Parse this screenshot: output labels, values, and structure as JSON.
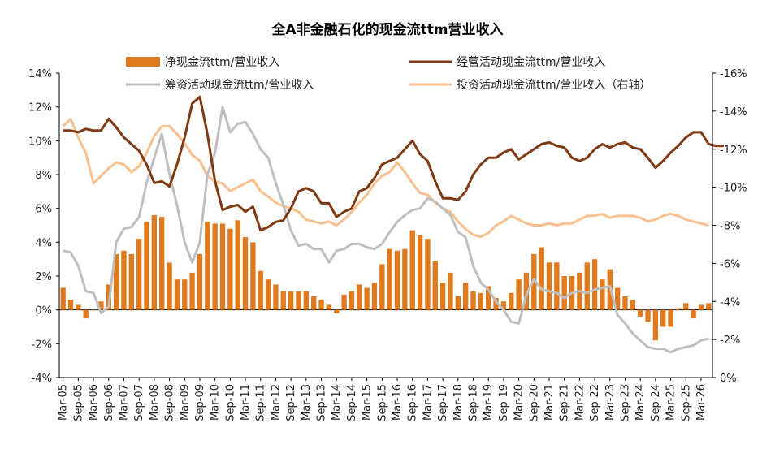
{
  "chart_data": {
    "type": "bar+line",
    "title": "全A非金融石化的现金流ttm营业收入",
    "legend": [
      {
        "label": "净现金流ttm/营业收入",
        "kind": "bar",
        "color": "#E07A1F"
      },
      {
        "label": "经营活动现金流ttm/营业收入",
        "kind": "line",
        "color": "#7F3A14"
      },
      {
        "label": "筹资活动现金流ttm/营业收入",
        "kind": "line",
        "color": "#BFBFBF"
      },
      {
        "label": "投资活动现金流ttm/营业收入（右轴）",
        "kind": "line",
        "color": "#F7C08E"
      }
    ],
    "left_axis": {
      "min": -4,
      "max": 14,
      "ticks": [
        "14%",
        "12%",
        "10%",
        "8%",
        "6%",
        "4%",
        "2%",
        "0%",
        "-2%",
        "-4%"
      ]
    },
    "right_axis": {
      "min": 0,
      "max": -16,
      "ticks": [
        "-16%",
        "-14%",
        "-12%",
        "-10%",
        "-8%",
        "-6%",
        "-4%",
        "-2%",
        "0%"
      ]
    },
    "x_tick_labels": [
      "Mar-05",
      "Sep-05",
      "Mar-06",
      "Sep-06",
      "Mar-07",
      "Sep-07",
      "Mar-08",
      "Sep-08",
      "Mar-09",
      "Sep-09",
      "Mar-10",
      "Sep-10",
      "Mar-11",
      "Sep-11",
      "Mar-12",
      "Sep-12",
      "Mar-13",
      "Sep-13",
      "Mar-14",
      "Sep-14",
      "Mar-15",
      "Sep-15",
      "Mar-16",
      "Sep-16",
      "Mar-17",
      "Sep-17",
      "Mar-18",
      "Sep-18",
      "Mar-19",
      "Sep-19",
      "Mar-20",
      "Sep-20",
      "Mar-21",
      "Sep-21",
      "Mar-22",
      "Sep-22",
      "Mar-23",
      "Sep-23",
      "Mar-24",
      "Sep-24",
      "Mar-25",
      "Sep-25",
      "Mar-26"
    ],
    "series": [
      {
        "name": "净现金流ttm/营业收入",
        "axis": "left",
        "values": [
          1.3,
          0.6,
          0.3,
          -0.5,
          0.0,
          0.5,
          1.5,
          3.3,
          3.5,
          3.3,
          4.2,
          5.2,
          5.6,
          5.5,
          2.8,
          1.8,
          1.8,
          2.2,
          3.3,
          5.2,
          5.1,
          5.1,
          4.8,
          5.3,
          4.3,
          4.0,
          2.3,
          1.8,
          1.5,
          1.1,
          1.1,
          1.1,
          1.1,
          0.8,
          0.6,
          0.3,
          -0.2,
          0.9,
          1.1,
          1.5,
          1.3,
          1.6,
          2.7,
          3.6,
          3.5,
          3.6,
          4.7,
          4.4,
          4.2,
          2.9,
          1.6,
          2.2,
          0.8,
          1.6,
          1.1,
          1.0,
          1.4,
          0.7,
          0.5,
          1.0,
          1.8,
          2.2,
          3.3,
          3.7,
          2.8,
          2.8,
          2.0,
          2.0,
          2.2,
          2.8,
          3.0,
          1.8,
          2.4,
          1.3,
          0.8,
          0.6,
          -0.4,
          -0.7,
          -1.8,
          -1.0,
          -1.0,
          0.1,
          0.4,
          -0.5,
          0.3,
          0.4
        ]
      },
      {
        "name": "经营活动现金流ttm/营业收入",
        "axis": "left",
        "values": [
          10.6,
          10.6,
          10.5,
          10.7,
          10.6,
          10.6,
          11.3,
          10.8,
          10.2,
          9.8,
          9.4,
          8.6,
          7.5,
          7.6,
          7.3,
          8.6,
          10.2,
          12.2,
          12.6,
          10.4,
          7.6,
          5.9,
          6.1,
          6.2,
          5.8,
          6.1,
          4.7,
          4.9,
          5.2,
          5.3,
          6.0,
          7.0,
          7.2,
          7.0,
          6.3,
          6.3,
          5.5,
          5.8,
          6.0,
          7.0,
          7.2,
          7.8,
          8.6,
          8.8,
          9.0,
          9.5,
          10.0,
          9.2,
          8.8,
          7.6,
          6.6,
          6.6,
          6.5,
          7.0,
          8.0,
          8.6,
          9.0,
          9.0,
          9.3,
          9.5,
          8.9,
          9.2,
          9.5,
          9.8,
          9.9,
          9.7,
          9.6,
          9.0,
          8.8,
          9.0,
          9.5,
          9.8,
          9.6,
          9.8,
          9.9,
          9.6,
          9.5,
          9.0,
          8.4,
          8.8,
          9.3,
          9.7,
          10.2,
          10.5,
          10.5,
          9.8,
          9.7,
          9.7
        ]
      },
      {
        "name": "筹资活动现金流ttm/营业收入",
        "axis": "left",
        "values": [
          3.5,
          3.4,
          2.6,
          1.1,
          1.0,
          -0.2,
          0.2,
          4.0,
          4.8,
          4.9,
          5.5,
          7.5,
          9.0,
          10.4,
          8.0,
          6.2,
          4.0,
          2.8,
          4.0,
          8.0,
          9.3,
          12.0,
          10.5,
          11.0,
          11.1,
          10.4,
          9.5,
          9.0,
          7.5,
          6.2,
          4.7,
          3.8,
          3.9,
          3.6,
          3.6,
          2.8,
          3.5,
          3.6,
          3.9,
          3.9,
          3.7,
          3.6,
          3.9,
          4.6,
          5.2,
          5.6,
          5.9,
          6.0,
          6.6,
          6.4,
          6.0,
          5.6,
          4.6,
          4.3,
          2.6,
          1.6,
          1.2,
          0.5,
          0.0,
          -0.7,
          -0.8,
          0.9,
          1.8,
          1.2,
          1.1,
          1.0,
          0.7,
          1.0,
          1.1,
          1.0,
          1.2,
          1.3,
          1.4,
          -0.3,
          -0.8,
          -1.4,
          -1.8,
          -2.2,
          -2.3,
          -2.3,
          -2.5,
          -2.3,
          -2.2,
          -2.1,
          -1.8,
          -1.7
        ]
      },
      {
        "name": "投资活动现金流ttm/营业收入（右轴）",
        "axis": "right",
        "values": [
          -13.2,
          -13.6,
          -12.6,
          -11.8,
          -10.2,
          -10.6,
          -11.0,
          -11.3,
          -11.2,
          -10.8,
          -11.1,
          -11.8,
          -12.7,
          -13.2,
          -13.2,
          -12.8,
          -12.3,
          -11.7,
          -11.4,
          -10.6,
          -10.3,
          -10.2,
          -9.8,
          -10.0,
          -10.2,
          -10.4,
          -9.8,
          -9.5,
          -9.2,
          -9.0,
          -8.9,
          -8.7,
          -8.3,
          -8.2,
          -8.1,
          -8.2,
          -8.0,
          -8.3,
          -8.7,
          -9.2,
          -9.6,
          -10.2,
          -10.6,
          -10.8,
          -11.3,
          -10.8,
          -10.2,
          -9.7,
          -9.6,
          -9.2,
          -8.9,
          -8.7,
          -8.2,
          -7.8,
          -7.5,
          -7.4,
          -7.6,
          -8.0,
          -8.2,
          -8.5,
          -8.3,
          -8.1,
          -8.0,
          -8.0,
          -8.1,
          -8.0,
          -8.1,
          -8.1,
          -8.3,
          -8.5,
          -8.5,
          -8.6,
          -8.4,
          -8.5,
          -8.5,
          -8.5,
          -8.4,
          -8.2,
          -8.3,
          -8.5,
          -8.6,
          -8.5,
          -8.3,
          -8.2,
          -8.1,
          -8.0
        ]
      }
    ]
  }
}
